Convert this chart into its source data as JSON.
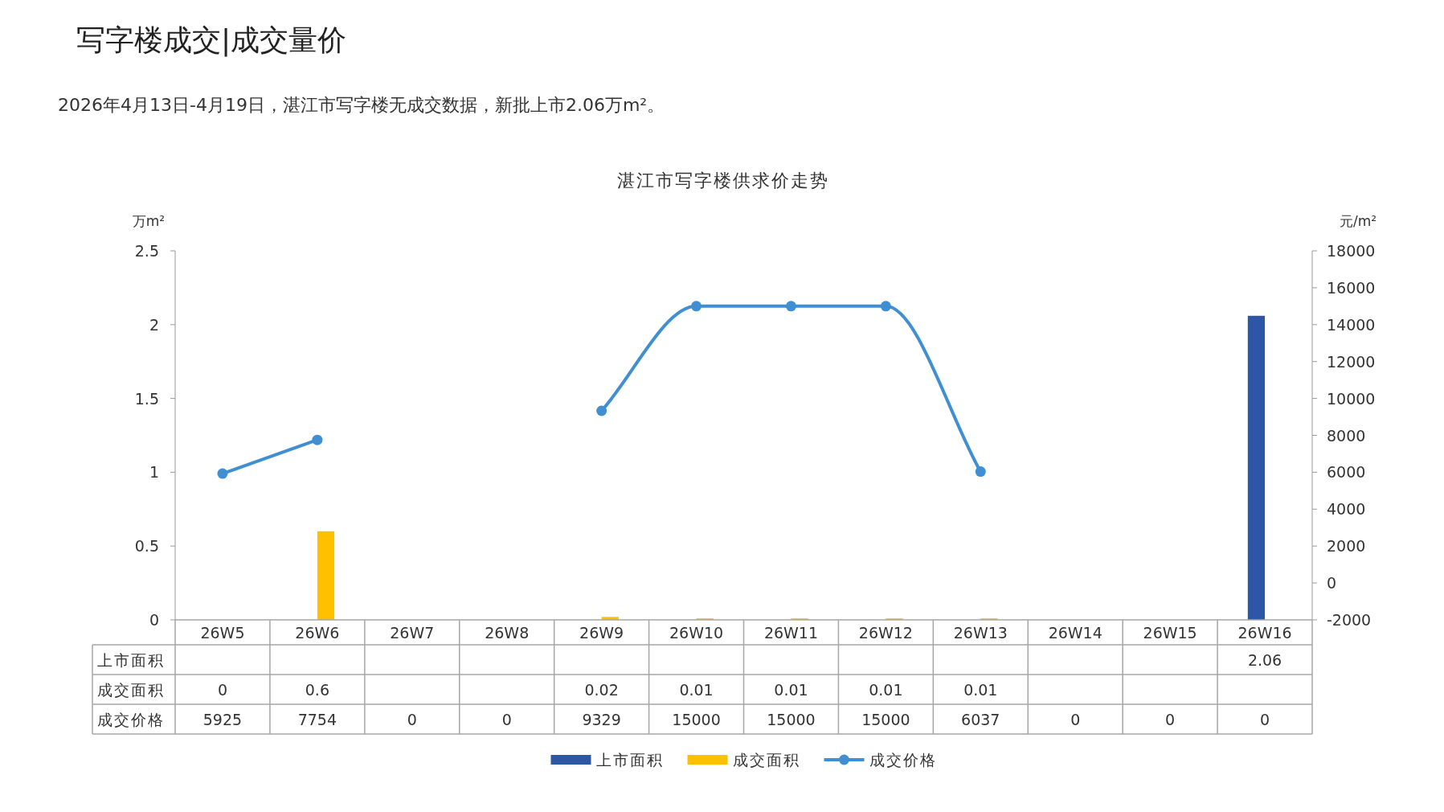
{
  "chart_data": {
    "type": "bar",
    "annotations": [
      "写字楼成交|成交量价"
    ],
    "subtitle": "2026年4月13日-4月19日，湛江市写字楼无成交数据，新批上市2.06万m²。",
    "title": "湛江市写字楼供求价走势",
    "ylabel": "万m²",
    "y2label": "元/m²",
    "categories": [
      "26W5",
      "26W6",
      "26W7",
      "26W8",
      "26W9",
      "26W10",
      "26W11",
      "26W12",
      "26W13",
      "26W14",
      "26W15",
      "26W16"
    ],
    "series": [
      {
        "name": "上市面积",
        "color": "#2e56a6",
        "values": [
          null,
          null,
          null,
          null,
          null,
          null,
          null,
          null,
          null,
          null,
          null,
          2.06
        ],
        "value_labels": [
          null,
          null,
          null,
          null,
          null,
          null,
          null,
          null,
          null,
          null,
          null,
          "2.06"
        ]
      },
      {
        "name": "成交面积",
        "color": "#ffc000",
        "values": [
          0,
          0.6,
          null,
          null,
          0.02,
          0.01,
          0.01,
          0.01,
          0.01,
          null,
          null,
          null
        ],
        "value_labels": [
          "0",
          "0.6",
          null,
          null,
          "0.02",
          "0.01",
          "0.01",
          "0.01",
          "0.01",
          null,
          null,
          null
        ]
      },
      {
        "name": "成交价格",
        "type": "line",
        "axis": "y2",
        "color": "#3f8fd2",
        "values": [
          5925,
          7754,
          null,
          null,
          9329,
          15000,
          15000,
          15000,
          6037,
          null,
          null,
          null
        ],
        "value_labels": [
          "5925",
          "7754",
          "0",
          "0",
          "9329",
          "15000",
          "15000",
          "15000",
          "6037",
          "0",
          "0",
          "0"
        ]
      }
    ],
    "ylim": [
      0,
      2.5
    ],
    "yticks": [
      0,
      0.5,
      1,
      1.5,
      2,
      2.5
    ],
    "y2lim": [
      -2000,
      18000
    ],
    "y2ticks": [
      -2000,
      0,
      2000,
      4000,
      6000,
      8000,
      10000,
      12000,
      14000,
      16000,
      18000
    ],
    "marker": "circle",
    "legend": "bottom"
  }
}
